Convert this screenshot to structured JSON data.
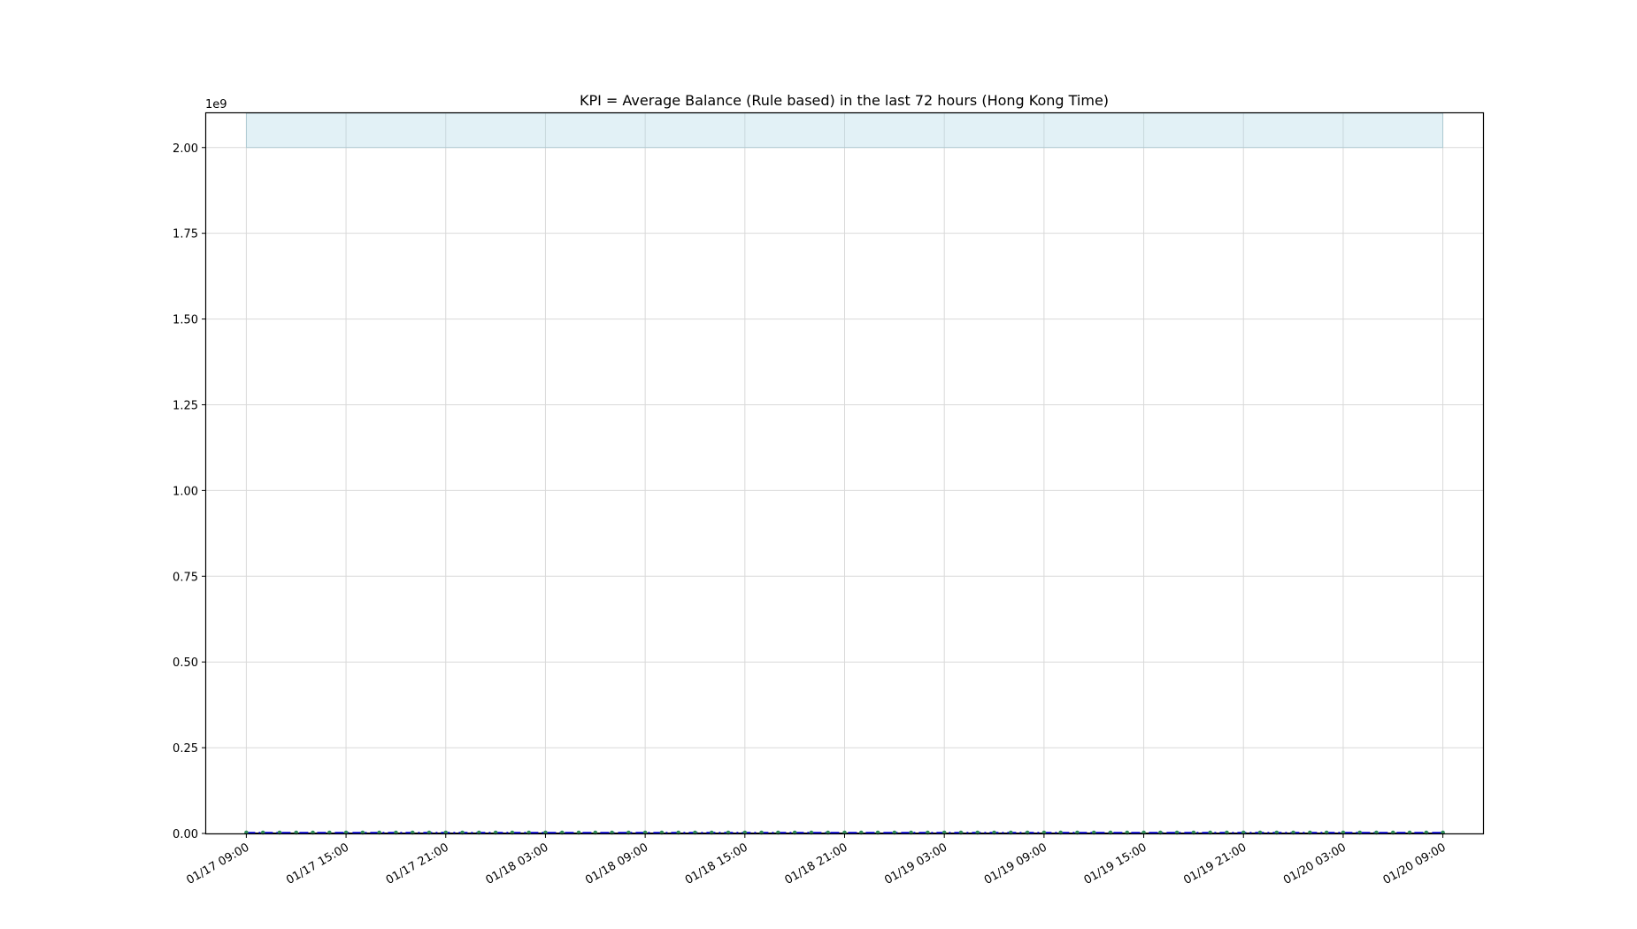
{
  "chart_data": {
    "type": "line",
    "title": "KPI = Average Balance (Rule based) in the last 72 hours (Hong Kong Time)",
    "y_offset_label": "1e9",
    "xlabel": "",
    "ylabel": "",
    "x_range": [
      "01/17 06:35",
      "01/20 11:25"
    ],
    "ylim": [
      0,
      2.1
    ],
    "y_ticks": [
      "0.00",
      "0.25",
      "0.50",
      "0.75",
      "1.00",
      "1.25",
      "1.50",
      "1.75",
      "2.00"
    ],
    "x_ticks": [
      "01/17 09:00",
      "01/17 15:00",
      "01/17 21:00",
      "01/18 03:00",
      "01/18 09:00",
      "01/18 15:00",
      "01/18 21:00",
      "01/19 03:00",
      "01/19 09:00",
      "01/19 15:00",
      "01/19 21:00",
      "01/20 03:00",
      "01/20 09:00"
    ],
    "grid": true,
    "band": {
      "x_start": "01/17 09:00",
      "x_end": "01/20 09:00",
      "y_low": 2.0,
      "y_high": 2.1,
      "color": "#add8e6"
    },
    "series": [
      {
        "style": "solid",
        "color": "#000000",
        "value": 0.0
      },
      {
        "style": "dash-dot",
        "color": "#0000cd",
        "value": 0.002
      }
    ],
    "points": {
      "color": "#2e8b57",
      "interval_hours": 1,
      "value": 0.0
    }
  }
}
